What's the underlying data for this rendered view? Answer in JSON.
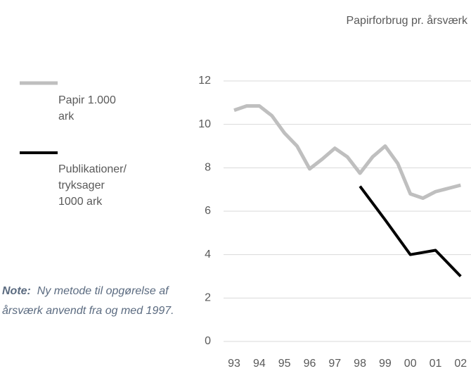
{
  "chart_data": {
    "type": "line",
    "title": "Papirforbrug pr. årsværk",
    "note_label": "Note:",
    "note": "Ny metode til opgørelse af årsværk anvendt fra og med 1997.",
    "xlim": [
      1992.58,
      2002.41
    ],
    "xticks": [
      {
        "value": 1993,
        "label": "93"
      },
      {
        "value": 1994,
        "label": "94"
      },
      {
        "value": 1995,
        "label": "95"
      },
      {
        "value": 1996,
        "label": "96"
      },
      {
        "value": 1997,
        "label": "97"
      },
      {
        "value": 1998,
        "label": "98"
      },
      {
        "value": 1999,
        "label": "99"
      },
      {
        "value": 2000,
        "label": "00"
      },
      {
        "value": 2001,
        "label": "01"
      },
      {
        "value": 2002,
        "label": "02"
      }
    ],
    "ylim": [
      0,
      12
    ],
    "yticks": [
      0,
      2,
      4,
      6,
      8,
      10,
      12
    ],
    "grid": true,
    "legend": "left",
    "series": [
      {
        "name": "Papir 1.000 ark",
        "color": "#bfbfbf",
        "x": [
          1993,
          1993.5,
          1994,
          1994.5,
          1995,
          1995.5,
          1996,
          1996.5,
          1997,
          1997.5,
          1998,
          1998.5,
          1999,
          1999.5,
          2000,
          2000.5,
          2001,
          2001.5,
          2002
        ],
        "values": [
          10.65,
          10.85,
          10.85,
          10.4,
          9.6,
          9.0,
          7.95,
          8.4,
          8.9,
          8.5,
          7.75,
          8.5,
          9.0,
          8.2,
          6.8,
          6.6,
          6.9,
          7.05,
          7.2
        ]
      },
      {
        "name": "Publikationer/ tryksager 1000 ark",
        "color": "#000000",
        "x": [
          1998,
          1999,
          2000,
          2001,
          2002
        ],
        "values": [
          7.15,
          5.6,
          4.0,
          4.2,
          3.0
        ]
      }
    ]
  }
}
